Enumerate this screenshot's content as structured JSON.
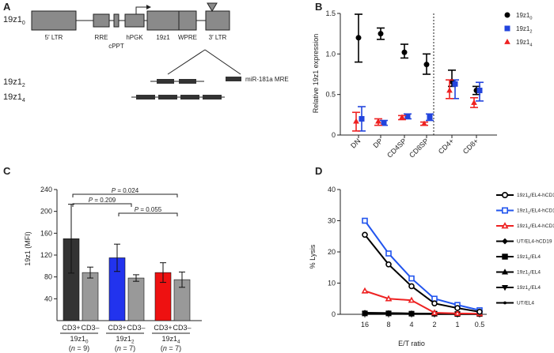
{
  "panels": {
    "a": "A",
    "b": "B",
    "c": "C",
    "d": "D"
  },
  "construct": {
    "main_label": "19z1",
    "main_sub": "0",
    "labels": [
      "5′ LTR",
      "RRE",
      "cPPT",
      "hPGK",
      "19z1",
      "WPRE",
      "3′ LTR"
    ],
    "variants": [
      {
        "label": "19z1",
        "sub": "2"
      },
      {
        "label": "19z1",
        "sub": "4"
      }
    ],
    "legend": "miR-181a MRE"
  },
  "chart_data": [
    {
      "id": "B",
      "type": "scatter",
      "ylabel": "Relative 19z1 expression",
      "ylim": [
        0,
        1.5
      ],
      "yticks": [
        0,
        0.5,
        1.0,
        1.5
      ],
      "categories": [
        "DN",
        "DP",
        "CD4SP",
        "CD8SP",
        "CD4+",
        "CD8+"
      ],
      "series": [
        {
          "name": "19z1",
          "sub": "0",
          "color": "#000000",
          "marker": "circle",
          "values": [
            1.2,
            1.25,
            1.02,
            0.87,
            0.66,
            0.55
          ],
          "low": [
            0.9,
            1.18,
            0.95,
            0.75,
            0.6,
            0.5
          ],
          "high": [
            1.49,
            1.32,
            1.12,
            1.0,
            0.8,
            0.6
          ]
        },
        {
          "name": "19z1",
          "sub": "2",
          "color": "#2244dd",
          "marker": "square",
          "values": [
            0.2,
            0.15,
            0.23,
            0.22,
            0.63,
            0.55
          ],
          "low": [
            0.05,
            0.12,
            0.2,
            0.18,
            0.45,
            0.42
          ],
          "high": [
            0.35,
            0.18,
            0.26,
            0.26,
            0.68,
            0.65
          ]
        },
        {
          "name": "19z1",
          "sub": "4",
          "color": "#ee2222",
          "marker": "triangle",
          "values": [
            0.17,
            0.17,
            0.22,
            0.14,
            0.55,
            0.4
          ],
          "low": [
            0.05,
            0.12,
            0.19,
            0.12,
            0.45,
            0.34
          ],
          "high": [
            0.28,
            0.2,
            0.24,
            0.16,
            0.68,
            0.46
          ]
        }
      ]
    },
    {
      "id": "C",
      "type": "bar",
      "ylabel": "19z1 (MFI)",
      "ylim": [
        0,
        240
      ],
      "yticks": [
        40,
        80,
        120,
        160,
        200,
        240
      ],
      "groups": [
        {
          "label": "19z1",
          "sub": "0",
          "n_prefix": "(",
          "n_italic": "n",
          "n_suffix": " = 9)",
          "bars": [
            {
              "name": "CD3+",
              "value": 150,
              "err": 63,
              "color": "#333333"
            },
            {
              "name": "CD3–",
              "value": 88,
              "err": 10,
              "color": "#999999"
            }
          ]
        },
        {
          "label": "19z1",
          "sub": "2",
          "n_prefix": "(",
          "n_italic": "n",
          "n_suffix": " = 7)",
          "bars": [
            {
              "name": "CD3+",
              "value": 115,
              "err": 25,
              "color": "#2233ee"
            },
            {
              "name": "CD3–",
              "value": 78,
              "err": 6,
              "color": "#999999"
            }
          ]
        },
        {
          "label": "19z1",
          "sub": "4",
          "n_prefix": "(",
          "n_italic": "n",
          "n_suffix": " = 7)",
          "bars": [
            {
              "name": "CD3+",
              "value": 88,
              "err": 18,
              "color": "#ee1111"
            },
            {
              "name": "CD3–",
              "value": 75,
              "err": 14,
              "color": "#999999"
            }
          ]
        }
      ],
      "annotations": [
        {
          "text": "P = 0.024",
          "from": 0,
          "to": 2
        },
        {
          "text": "P = 0.209",
          "from": 0,
          "to": 1
        },
        {
          "text": "P = 0.055",
          "from": 1,
          "to": 2
        }
      ]
    },
    {
      "id": "D",
      "type": "line",
      "xlabel": "E/T ratio",
      "ylabel": "% Lysis",
      "categories": [
        "16",
        "8",
        "4",
        "2",
        "1",
        "0.5"
      ],
      "ylim": [
        0,
        40
      ],
      "yticks": [
        0,
        10,
        20,
        30,
        40
      ],
      "series": [
        {
          "name": "19z1",
          "sub": "0",
          "suffix": "/EL4-hCD19",
          "color": "#000000",
          "marker": "circle-open",
          "values": [
            25.5,
            16,
            9,
            3.5,
            2,
            0.8
          ]
        },
        {
          "name": "19z1",
          "sub": "2",
          "suffix": "/EL4-hCD19",
          "color": "#2255ee",
          "marker": "square-open",
          "values": [
            30,
            19.5,
            11.5,
            5,
            3,
            1.3
          ]
        },
        {
          "name": "19z1",
          "sub": "4",
          "suffix": "/EL4-hCD19",
          "color": "#ee2222",
          "marker": "triangle-open",
          "values": [
            7.5,
            5,
            4.5,
            0.5,
            0.3,
            0.2
          ]
        },
        {
          "name": "UT/EL4-hCD19",
          "sub": "",
          "suffix": "",
          "color": "#000000",
          "marker": "diamond",
          "values": [
            0.5,
            0.4,
            0.3,
            0.2,
            0.2,
            0.1
          ]
        },
        {
          "name": "19z1",
          "sub": "0",
          "suffix": "/EL4",
          "color": "#000000",
          "marker": "square",
          "values": [
            0.3,
            0.3,
            0.2,
            0.2,
            0.1,
            0.1
          ]
        },
        {
          "name": "19z1",
          "sub": "2",
          "suffix": "/EL4",
          "color": "#000000",
          "marker": "triangle",
          "values": [
            0.2,
            0.2,
            0.2,
            0.1,
            0.1,
            0.1
          ]
        },
        {
          "name": "19z1",
          "sub": "4",
          "suffix": "/EL4",
          "color": "#000000",
          "marker": "triangle-down",
          "values": [
            0.2,
            0.2,
            0.1,
            0.1,
            0.1,
            0.1
          ]
        },
        {
          "name": "UT/EL4",
          "sub": "",
          "suffix": "",
          "color": "#000000",
          "marker": "dot",
          "values": [
            0.1,
            0.1,
            0.1,
            0.1,
            0.1,
            0.1
          ]
        }
      ]
    }
  ]
}
